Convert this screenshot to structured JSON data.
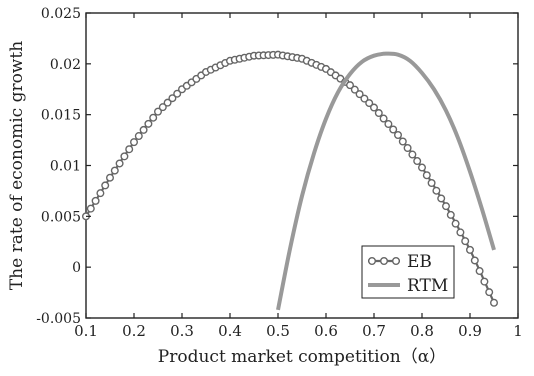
{
  "chart_data": {
    "type": "line",
    "xlabel": "Product market competition（α）",
    "ylabel": "The rate of economic growth",
    "xlim": [
      0.1,
      1.0
    ],
    "ylim": [
      -0.005,
      0.025
    ],
    "xticks": [
      "0.1",
      "0.2",
      "0.3",
      "0.4",
      "0.5",
      "0.6",
      "0.7",
      "0.8",
      "0.9",
      "1"
    ],
    "yticks": [
      "-0.005",
      "0",
      "0.005",
      "0.01",
      "0.015",
      "0.02",
      "0.025"
    ],
    "grid": false,
    "legend_position": "bottom-right",
    "series": [
      {
        "name": "EB",
        "color": "#666666",
        "marker": "circle",
        "x": [
          0.1,
          0.15,
          0.2,
          0.25,
          0.3,
          0.35,
          0.4,
          0.45,
          0.5,
          0.55,
          0.6,
          0.65,
          0.7,
          0.75,
          0.8,
          0.85,
          0.9,
          0.95
        ],
        "y": [
          0.005,
          0.0088,
          0.0123,
          0.0153,
          0.0175,
          0.0192,
          0.0203,
          0.0208,
          0.0209,
          0.0205,
          0.0195,
          0.0179,
          0.0157,
          0.013,
          0.0098,
          0.006,
          0.0017,
          -0.0035
        ]
      },
      {
        "name": "RTM",
        "color": "#999999",
        "marker": "none",
        "x": [
          0.5,
          0.525,
          0.55,
          0.575,
          0.6,
          0.625,
          0.65,
          0.675,
          0.7,
          0.725,
          0.75,
          0.775,
          0.8,
          0.825,
          0.85,
          0.875,
          0.9,
          0.925,
          0.95
        ],
        "y": [
          -0.0042,
          0.0018,
          0.007,
          0.0112,
          0.0146,
          0.0172,
          0.019,
          0.0202,
          0.0208,
          0.021,
          0.0209,
          0.0203,
          0.0191,
          0.0175,
          0.0154,
          0.0127,
          0.0094,
          0.0057,
          0.0017
        ]
      }
    ]
  }
}
